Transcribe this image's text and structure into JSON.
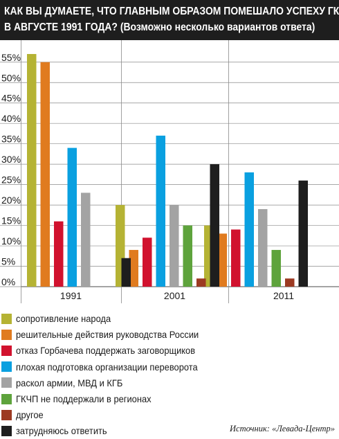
{
  "header": {
    "title_line1": "КАК ВЫ ДУМАЕТЕ, ЧТО ГЛАВНЫМ ОБРАЗОМ ПОМЕШАЛО УСПЕХУ ГКЧП",
    "title_line2_main": "В АВГУСТЕ 1991 ГОДА?",
    "title_line2_note": "(Возможно несколько вариантов ответа)"
  },
  "source": "Источник: «Левада-Центр»",
  "chart_data": {
    "type": "bar",
    "title": "КАК ВЫ ДУМАЕТЕ, ЧТО ГЛАВНЫМ ОБРАЗОМ ПОМЕШАЛО УСПЕХУ ГКЧП В АВГУСТЕ 1991 ГОДА? (Возможно несколько вариантов ответа)",
    "categories": [
      "1991",
      "2001",
      "2011"
    ],
    "ylim": [
      0,
      57
    ],
    "yticks": [
      0,
      5,
      10,
      15,
      20,
      25,
      30,
      35,
      40,
      45,
      50,
      55
    ],
    "ytick_labels": [
      "0%",
      "5%",
      "10%",
      "15%",
      "20%",
      "25%",
      "30%",
      "35%",
      "40%",
      "45%",
      "50%",
      "55%"
    ],
    "grid": true,
    "legend_position": "bottom",
    "series": [
      {
        "name": "сопротивление народа",
        "color": "#b5b334",
        "values": [
          57,
          20,
          15
        ]
      },
      {
        "name": "решительные действия руководства России",
        "color": "#e07b1f",
        "values": [
          55,
          9,
          13
        ]
      },
      {
        "name": "отказ Горбачева поддержать заговорщиков",
        "color": "#d1122e",
        "values": [
          16,
          12,
          14
        ]
      },
      {
        "name": "плохая подготовка организации переворота",
        "color": "#0aa0e0",
        "values": [
          34,
          37,
          28
        ]
      },
      {
        "name": "раскол армии, МВД и КГБ",
        "color": "#a3a3a3",
        "values": [
          23,
          20,
          19
        ]
      },
      {
        "name": "ГКЧП не поддержали в регионах",
        "color": "#5ea33c",
        "values": [
          null,
          15,
          9
        ]
      },
      {
        "name": "другое",
        "color": "#9c3a22",
        "values": [
          null,
          2,
          2
        ]
      },
      {
        "name": "затрудняюсь ответить",
        "color": "#1e1e1e",
        "values": [
          7,
          30,
          26
        ]
      }
    ]
  }
}
